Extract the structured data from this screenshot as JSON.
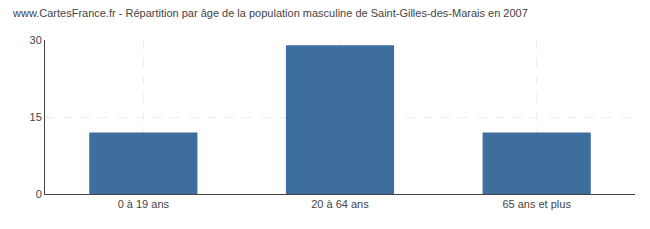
{
  "chart_data": {
    "type": "bar",
    "title": "www.CartesFrance.fr - Répartition par âge de la population masculine de Saint-Gilles-des-Marais en 2007",
    "categories": [
      "0 à 19 ans",
      "20 à 64 ans",
      "65 ans et plus"
    ],
    "values": [
      12,
      29,
      12
    ],
    "color": "#3d6e9e",
    "ylim": [
      0,
      30
    ],
    "yticks": [
      0,
      15,
      30
    ],
    "grid": true
  }
}
